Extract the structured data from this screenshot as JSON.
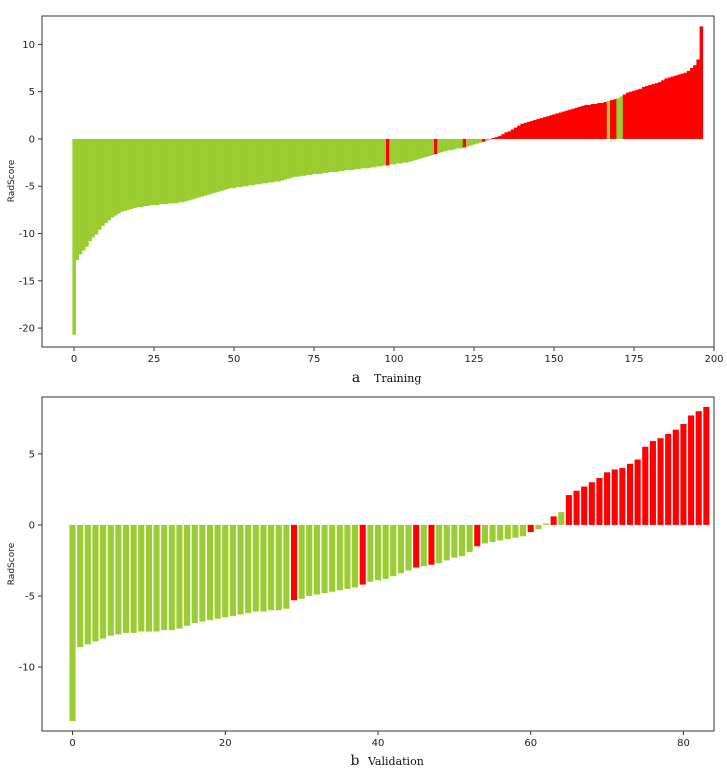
{
  "colors": {
    "negative": "#9ACD32",
    "positive": "#FF0000"
  },
  "chart_data": [
    {
      "type": "bar",
      "ylabel": "RadScore",
      "caption_letter": "a",
      "caption_word": "Training",
      "xlim": [
        -10,
        200
      ],
      "ylim": [
        -22,
        13
      ],
      "xticks": [
        0,
        25,
        50,
        75,
        100,
        125,
        150,
        175,
        200
      ],
      "yticks": [
        -20,
        -15,
        -10,
        -5,
        0,
        5,
        10
      ],
      "series": [
        {
          "values": [
            -20.7,
            -12.8,
            -12.2,
            -11.8,
            -11.4,
            -10.8,
            -10.4,
            -10.1,
            -9.6,
            -9.2,
            -8.9,
            -8.6,
            -8.3,
            -8.1,
            -7.9,
            -7.7,
            -7.6,
            -7.5,
            -7.4,
            -7.3,
            -7.2,
            -7.2,
            -7.1,
            -7.1,
            -7.0,
            -7.0,
            -7.0,
            -6.9,
            -6.9,
            -6.9,
            -6.8,
            -6.8,
            -6.8,
            -6.7,
            -6.7,
            -6.6,
            -6.5,
            -6.4,
            -6.3,
            -6.2,
            -6.1,
            -6.0,
            -5.9,
            -5.8,
            -5.7,
            -5.6,
            -5.5,
            -5.4,
            -5.3,
            -5.2,
            -5.2,
            -5.1,
            -5.1,
            -5.0,
            -5.0,
            -4.9,
            -4.9,
            -4.8,
            -4.8,
            -4.7,
            -4.7,
            -4.6,
            -4.6,
            -4.5,
            -4.5,
            -4.4,
            -4.3,
            -4.2,
            -4.1,
            -4.0,
            -4.0,
            -3.9,
            -3.9,
            -3.8,
            -3.8,
            -3.7,
            -3.7,
            -3.7,
            -3.6,
            -3.6,
            -3.5,
            -3.5,
            -3.5,
            -3.4,
            -3.4,
            -3.3,
            -3.3,
            -3.3,
            -3.2,
            -3.2,
            -3.1,
            -3.1,
            -3.1,
            -3.0,
            -3.0,
            -2.9,
            -2.9,
            -2.8,
            -2.8,
            -2.7,
            -2.7,
            -2.6,
            -2.6,
            -2.5,
            -2.5,
            -2.4,
            -2.3,
            -2.2,
            -2.1,
            -2.0,
            -1.9,
            -1.8,
            -1.7,
            -1.6,
            -1.5,
            -1.4,
            -1.3,
            -1.2,
            -1.2,
            -1.1,
            -1.0,
            -1.0,
            -0.9,
            -0.8,
            -0.7,
            -0.6,
            -0.5,
            -0.4,
            -0.3,
            -0.2,
            -0.1,
            0.1,
            0.2,
            0.3,
            0.5,
            0.7,
            0.8,
            1.0,
            1.2,
            1.4,
            1.6,
            1.7,
            1.8,
            1.9,
            2.0,
            2.1,
            2.2,
            2.3,
            2.4,
            2.5,
            2.6,
            2.7,
            2.8,
            2.9,
            3.0,
            3.1,
            3.2,
            3.3,
            3.4,
            3.5,
            3.6,
            3.6,
            3.7,
            3.7,
            3.8,
            3.8,
            3.9,
            4.0,
            4.1,
            4.2,
            4.3,
            4.5,
            4.7,
            4.9,
            5.0,
            5.1,
            5.2,
            5.3,
            5.5,
            5.6,
            5.7,
            5.8,
            5.9,
            6.0,
            6.2,
            6.4,
            6.5,
            6.6,
            6.7,
            6.8,
            6.9,
            7.0,
            7.2,
            7.5,
            7.8,
            8.4,
            11.9
          ],
          "highlight_positive": [
            98,
            113,
            122,
            128,
            131,
            133
          ],
          "highlight_negative": [
            167,
            170,
            171
          ]
        }
      ]
    },
    {
      "type": "bar",
      "ylabel": "RadScore",
      "caption_letter": "b",
      "caption_word": "Validation",
      "xlim": [
        -4,
        84
      ],
      "ylim": [
        -14.5,
        9
      ],
      "xticks": [
        0,
        20,
        40,
        60,
        80
      ],
      "yticks": [
        -10,
        -5,
        0,
        5
      ],
      "series": [
        {
          "values": [
            -13.8,
            -8.6,
            -8.4,
            -8.2,
            -8.0,
            -7.8,
            -7.7,
            -7.6,
            -7.6,
            -7.5,
            -7.5,
            -7.5,
            -7.4,
            -7.4,
            -7.3,
            -7.1,
            -6.9,
            -6.8,
            -6.7,
            -6.6,
            -6.5,
            -6.4,
            -6.3,
            -6.2,
            -6.1,
            -6.1,
            -6.0,
            -6.0,
            -5.9,
            -5.3,
            -5.2,
            -5.0,
            -4.9,
            -4.8,
            -4.7,
            -4.6,
            -4.5,
            -4.4,
            -4.2,
            -4.0,
            -3.9,
            -3.8,
            -3.6,
            -3.4,
            -3.2,
            -3.0,
            -2.9,
            -2.8,
            -2.7,
            -2.5,
            -2.3,
            -2.2,
            -1.9,
            -1.5,
            -1.3,
            -1.2,
            -1.1,
            -1.0,
            -0.9,
            -0.8,
            -0.5,
            -0.3,
            0.1,
            0.6,
            0.9,
            2.1,
            2.4,
            2.7,
            3.0,
            3.3,
            3.7,
            3.9,
            4.0,
            4.3,
            4.6,
            5.5,
            5.9,
            6.1,
            6.4,
            6.7,
            7.1,
            7.7,
            8.0,
            8.3
          ],
          "highlight_positive": [
            29,
            38,
            45,
            47,
            53,
            60
          ],
          "highlight_negative": [
            62,
            64
          ]
        }
      ]
    }
  ]
}
